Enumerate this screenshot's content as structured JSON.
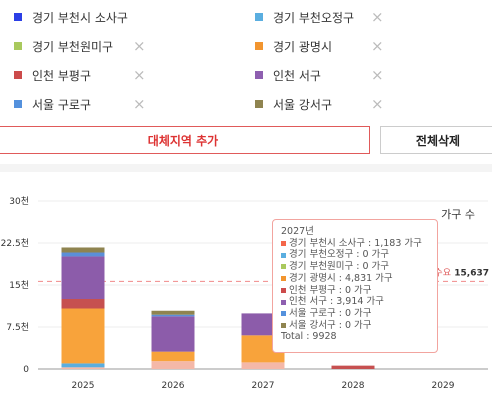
{
  "legend": [
    {
      "label": "경기 부천시 소사구",
      "color": "#2b3fe6",
      "removable": false
    },
    {
      "label": "경기 부천오정구",
      "color": "#5aaee0",
      "removable": true
    },
    {
      "label": "경기 부천원미구",
      "color": "#a9c95d",
      "removable": true
    },
    {
      "label": "경기 광명시",
      "color": "#f2952f",
      "removable": true
    },
    {
      "label": "인천 부평구",
      "color": "#cc4b4b",
      "removable": true
    },
    {
      "label": "인천 서구",
      "color": "#8e5fb0",
      "removable": true
    },
    {
      "label": "서울 구로구",
      "color": "#5491dd",
      "removable": true
    },
    {
      "label": "서울 강서구",
      "color": "#8f8450",
      "removable": true
    }
  ],
  "remove_icon": "×",
  "buttons": {
    "add": "대체지역 추가",
    "delete_all": "전체삭제"
  },
  "chart_data": {
    "type": "bar",
    "stacked": true,
    "unit_label": "가구 수",
    "categories": [
      "2025",
      "2026",
      "2027",
      "2028",
      "2029"
    ],
    "y_ticks": [
      "0",
      "7.5천",
      "15천",
      "22.5천",
      "30천"
    ],
    "ylim": [
      0,
      30000
    ],
    "threshold": {
      "label": "적정수요",
      "value": 15637,
      "value_label": "15,637",
      "color": "#f08a8a"
    },
    "series": [
      {
        "name": "경기 부천시 소사구",
        "color": "#f4b8a8",
        "values": [
          300,
          1400,
          1183,
          0,
          0
        ]
      },
      {
        "name": "경기 부천오정구",
        "color": "#5aaee0",
        "values": [
          700,
          0,
          0,
          0,
          0
        ]
      },
      {
        "name": "경기 부천원미구",
        "color": "#a9c95d",
        "values": [
          0,
          0,
          0,
          0,
          0
        ]
      },
      {
        "name": "경기 광명시",
        "color": "#f8a33b",
        "values": [
          9800,
          1700,
          4831,
          0,
          0
        ]
      },
      {
        "name": "인천 부평구",
        "color": "#c65050",
        "values": [
          1700,
          0,
          0,
          600,
          0
        ]
      },
      {
        "name": "인천 서구",
        "color": "#8c5caa",
        "values": [
          7600,
          6300,
          3914,
          0,
          0
        ]
      },
      {
        "name": "서울 구로구",
        "color": "#5b8fd8",
        "values": [
          700,
          300,
          0,
          0,
          0
        ]
      },
      {
        "name": "서울 강서구",
        "color": "#8f8450",
        "values": [
          900,
          700,
          0,
          0,
          0
        ]
      }
    ]
  },
  "tooltip": {
    "year": "2027년",
    "rows": [
      {
        "text": "경기 부천시 소사구 : 1,183 가구",
        "color": "#f4664a"
      },
      {
        "text": "경기 부천오정구 : 0 가구",
        "color": "#5aaee0"
      },
      {
        "text": "경기 부천원미구 : 0 가구",
        "color": "#a9c95d"
      },
      {
        "text": "경기 광명시 : 4,831 가구",
        "color": "#f2952f"
      },
      {
        "text": "인천 부평구 : 0 가구",
        "color": "#cc4b4b"
      },
      {
        "text": "인천 서구 : 3,914 가구",
        "color": "#8e5fb0"
      },
      {
        "text": "서울 구로구 : 0 가구",
        "color": "#5491dd"
      },
      {
        "text": "서울 강서구 : 0 가구",
        "color": "#8f8450"
      }
    ],
    "total": "Total : 9928"
  }
}
